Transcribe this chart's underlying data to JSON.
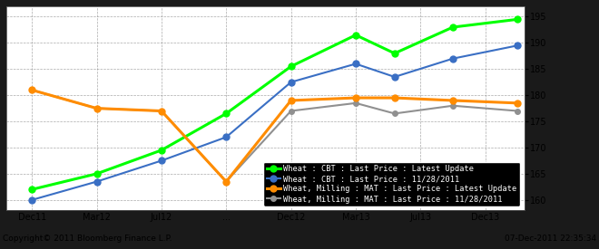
{
  "background_color": "#1a1a1a",
  "plot_bg_color": "#ffffff",
  "grid_color": "#888888",
  "ylim": [
    158,
    197
  ],
  "yticks": [
    160,
    165,
    170,
    175,
    180,
    185,
    190,
    195
  ],
  "x_labels": [
    "Dec11",
    "Mar12",
    "Jul12",
    "...",
    "Dec12",
    "Mar13",
    "Jul13",
    "Dec13"
  ],
  "x_positions": [
    0,
    1,
    2,
    3,
    4,
    5,
    6,
    7
  ],
  "xlim": [
    -0.4,
    7.6
  ],
  "green_x": [
    0,
    1,
    2,
    3,
    4,
    5,
    5.6,
    6.5,
    7.5
  ],
  "green_y": [
    162.0,
    165.0,
    169.5,
    176.5,
    185.5,
    191.5,
    188.0,
    193.0,
    194.5
  ],
  "blue_x": [
    0,
    1,
    2,
    3,
    4,
    5,
    5.6,
    6.5,
    7.5
  ],
  "blue_y": [
    160.0,
    163.5,
    167.5,
    172.0,
    182.5,
    186.0,
    183.5,
    187.0,
    189.5
  ],
  "orange_x": [
    0,
    1,
    2,
    3,
    4,
    5,
    5.6,
    6.5,
    7.5
  ],
  "orange_y": [
    181.0,
    177.5,
    177.0,
    163.5,
    179.0,
    179.5,
    179.5,
    179.0,
    178.5
  ],
  "gray_x": [
    0,
    1,
    2,
    3,
    4,
    5,
    5.6,
    6.5,
    7.5
  ],
  "gray_y": [
    181.0,
    177.5,
    177.0,
    163.5,
    177.0,
    178.5,
    176.5,
    178.0,
    177.0
  ],
  "legend_labels": [
    "Wheat : CBT : Last Price : Latest Update",
    "Wheat : CBT : Last Price : 11/28/2011",
    "Wheat, Milling : MAT : Last Price : Latest Update",
    "Wheat, Milling : MAT : Last Price : 11/28/2011"
  ],
  "legend_colors": [
    "#00ff00",
    "#3a6fc4",
    "#ff8c00",
    "#909090"
  ],
  "copyright_text": "Copyright© 2011 Bloomberg Finance L.P.",
  "date_text": "07-Dec-2011 22:35:34",
  "footer_bg": "#b0b0b0"
}
